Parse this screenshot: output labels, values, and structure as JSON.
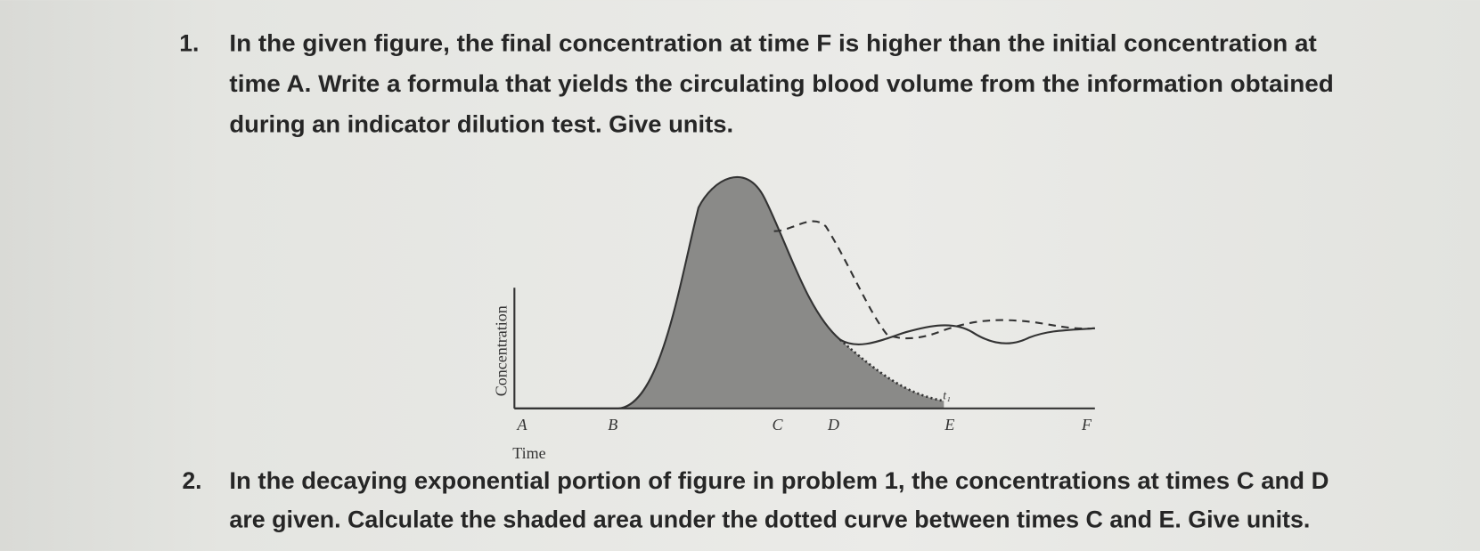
{
  "question_1": {
    "number": "1.",
    "lines": [
      "In the given figure, the final concentration at time F is higher than the initial concentration at",
      "time A. Write a formula that yields the circulating blood volume from the information obtained",
      "during an indicator dilution test. Give units."
    ]
  },
  "figure": {
    "y_label": "Concentration",
    "x_label": "Time",
    "points": [
      "A",
      "B",
      "C",
      "D",
      "E",
      "F"
    ],
    "t_label": "t₁"
  },
  "question_2": {
    "number": "2.",
    "lines": [
      "In the decaying exponential portion of figure in problem 1, the concentrations at times C and D",
      "are given. Calculate the shaded area under the dotted curve between times C and E. Give units."
    ]
  }
}
